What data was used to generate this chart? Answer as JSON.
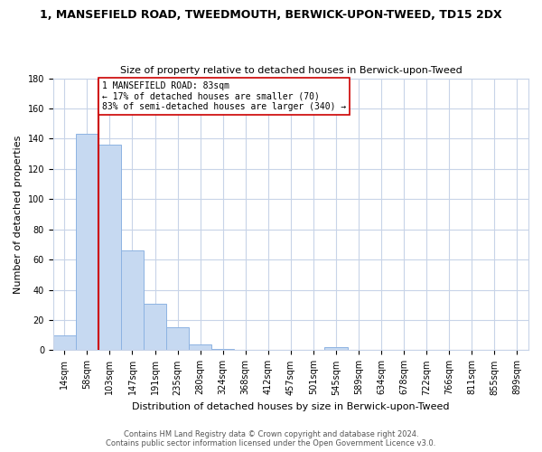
{
  "title": "1, MANSEFIELD ROAD, TWEEDMOUTH, BERWICK-UPON-TWEED, TD15 2DX",
  "subtitle": "Size of property relative to detached houses in Berwick-upon-Tweed",
  "xlabel": "Distribution of detached houses by size in Berwick-upon-Tweed",
  "ylabel": "Number of detached properties",
  "bin_labels": [
    "14sqm",
    "58sqm",
    "103sqm",
    "147sqm",
    "191sqm",
    "235sqm",
    "280sqm",
    "324sqm",
    "368sqm",
    "412sqm",
    "457sqm",
    "501sqm",
    "545sqm",
    "589sqm",
    "634sqm",
    "678sqm",
    "722sqm",
    "766sqm",
    "811sqm",
    "855sqm",
    "899sqm"
  ],
  "bar_heights": [
    10,
    143,
    136,
    66,
    31,
    15,
    4,
    1,
    0,
    0,
    0,
    0,
    2,
    0,
    0,
    0,
    0,
    0,
    0,
    0,
    0
  ],
  "bar_color": "#c6d9f1",
  "bar_edge_color": "#8db3e2",
  "vline_x_bin": 1.5,
  "annotation_box_text": "1 MANSEFIELD ROAD: 83sqm\n← 17% of detached houses are smaller (70)\n83% of semi-detached houses are larger (340) →",
  "vline_color": "#cc0000",
  "ylim": [
    0,
    180
  ],
  "yticks": [
    0,
    20,
    40,
    60,
    80,
    100,
    120,
    140,
    160,
    180
  ],
  "footer_line1": "Contains HM Land Registry data © Crown copyright and database right 2024.",
  "footer_line2": "Contains public sector information licensed under the Open Government Licence v3.0.",
  "background_color": "#ffffff",
  "grid_color": "#c8d4e8",
  "title_fontsize": 9,
  "subtitle_fontsize": 8,
  "ylabel_fontsize": 8,
  "xlabel_fontsize": 8,
  "tick_fontsize": 7,
  "footer_fontsize": 6
}
